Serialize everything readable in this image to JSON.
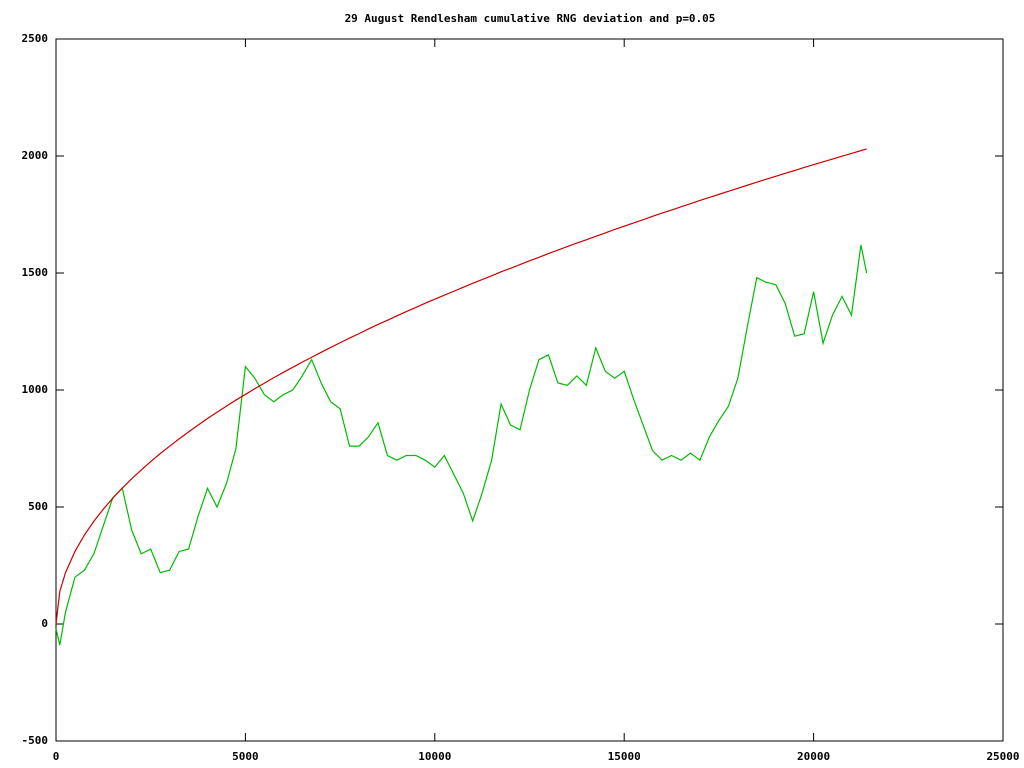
{
  "chart_data": {
    "type": "line",
    "title": "29 August Rendlesham cumulative RNG deviation and p=0.05",
    "x": [
      0,
      100,
      250,
      500,
      750,
      1000,
      1250,
      1500,
      1750,
      2000,
      2250,
      2500,
      2750,
      3000,
      3250,
      3500,
      3750,
      4000,
      4250,
      4500,
      4750,
      5000,
      5250,
      5500,
      5750,
      6000,
      6250,
      6500,
      6750,
      7000,
      7250,
      7500,
      7750,
      8000,
      8250,
      8500,
      8750,
      9000,
      9250,
      9500,
      9750,
      10000,
      10250,
      10500,
      10750,
      11000,
      11250,
      11500,
      11750,
      12000,
      12250,
      12500,
      12750,
      13000,
      13250,
      13500,
      13750,
      14000,
      14250,
      14500,
      14750,
      15000,
      15250,
      15500,
      15750,
      16000,
      16250,
      16500,
      16750,
      17000,
      17250,
      17500,
      17750,
      18000,
      18250,
      18500,
      18750,
      19000,
      19250,
      19500,
      19750,
      20000,
      20250,
      20500,
      20750,
      21000,
      21250,
      21400
    ],
    "series": [
      {
        "color": "#00bb00",
        "values": [
          -20,
          -90,
          50,
          200,
          230,
          300,
          420,
          540,
          580,
          400,
          300,
          320,
          220,
          230,
          310,
          320,
          460,
          580,
          500,
          600,
          750,
          1100,
          1050,
          980,
          950,
          980,
          1000,
          1060,
          1130,
          1030,
          950,
          920,
          760,
          760,
          800,
          860,
          720,
          700,
          720,
          720,
          700,
          670,
          720,
          640,
          560,
          440,
          560,
          700,
          940,
          850,
          830,
          1000,
          1130,
          1150,
          1030,
          1020,
          1060,
          1020,
          1180,
          1080,
          1050,
          1080,
          960,
          850,
          740,
          700,
          720,
          700,
          730,
          700,
          800,
          870,
          930,
          1050,
          1270,
          1480,
          1460,
          1450,
          1370,
          1230,
          1240,
          1420,
          1200,
          1320,
          1400,
          1320,
          1620,
          1500
        ]
      },
      {
        "color": "#cc0000",
        "values": [
          0,
          139,
          219,
          310,
          380,
          439,
          491,
          538,
          581,
          621,
          658,
          694,
          728,
          760,
          791,
          821,
          850,
          878,
          905,
          931,
          957,
          981,
          1006,
          1029,
          1053,
          1075,
          1097,
          1119,
          1140,
          1161,
          1182,
          1202,
          1222,
          1241,
          1261,
          1280,
          1298,
          1317,
          1335,
          1353,
          1371,
          1388,
          1405,
          1422,
          1439,
          1456,
          1472,
          1488,
          1505,
          1520,
          1536,
          1552,
          1567,
          1583,
          1598,
          1613,
          1628,
          1642,
          1657,
          1671,
          1686,
          1700,
          1714,
          1728,
          1742,
          1756,
          1769,
          1783,
          1796,
          1810,
          1823,
          1836,
          1849,
          1862,
          1875,
          1888,
          1901,
          1913,
          1926,
          1938,
          1951,
          1963,
          1975,
          1987,
          1999,
          2011,
          2023,
          2030
        ]
      }
    ],
    "xlim": [
      0,
      25000
    ],
    "xticks": [
      0,
      5000,
      10000,
      15000,
      20000,
      25000
    ],
    "ylim": [
      -500,
      2500
    ],
    "yticks": [
      -500,
      0,
      500,
      1000,
      1500,
      2000,
      2500
    ],
    "grid": false
  }
}
